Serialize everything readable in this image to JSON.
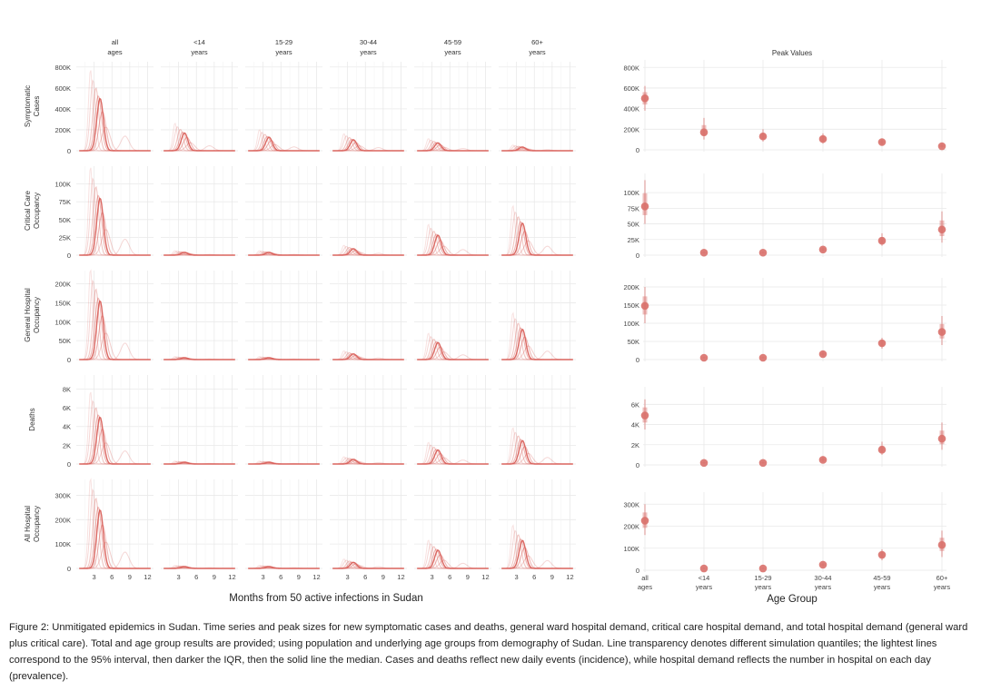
{
  "chart_data": [
    {
      "type": "line",
      "title": "",
      "xlabel": "Months from 50 active infections in Sudan",
      "x_ticks": [
        3,
        6,
        9,
        12
      ],
      "xlim": [
        0,
        13
      ],
      "columns": [
        {
          "key": "all",
          "line1": "all",
          "line2": "ages"
        },
        {
          "key": "u14",
          "line1": "<14",
          "line2": "years"
        },
        {
          "key": "a15",
          "line1": "15-29",
          "line2": "years"
        },
        {
          "key": "a30",
          "line1": "30-44",
          "line2": "years"
        },
        {
          "key": "a45",
          "line1": "45-59",
          "line2": "years"
        },
        {
          "key": "a60",
          "line1": "60+",
          "line2": "years"
        }
      ],
      "rows": [
        {
          "label_lines": [
            "Symptomatic",
            "Cases"
          ],
          "ylim": [
            0,
            850000
          ],
          "y_ticks": [
            0,
            200000,
            400000,
            600000,
            800000
          ],
          "y_tick_labels": [
            "0",
            "200K",
            "400K",
            "600K",
            "800K"
          ],
          "median_peaks": [
            500000,
            170000,
            130000,
            105000,
            75000,
            35000
          ]
        },
        {
          "label_lines": [
            "Critical Care",
            "Occupancy"
          ],
          "ylim": [
            0,
            125000
          ],
          "y_ticks": [
            0,
            25000,
            50000,
            75000,
            100000
          ],
          "y_tick_labels": [
            "0",
            "25K",
            "50K",
            "75K",
            "100K"
          ],
          "median_peaks": [
            80000,
            4000,
            4000,
            9000,
            28000,
            45000
          ]
        },
        {
          "label_lines": [
            "General Hospital",
            "Occupancy"
          ],
          "ylim": [
            0,
            235000
          ],
          "y_ticks": [
            0,
            50000,
            100000,
            150000,
            200000
          ],
          "y_tick_labels": [
            "0",
            "50K",
            "100K",
            "150K",
            "200K"
          ],
          "median_peaks": [
            155000,
            5000,
            5000,
            15000,
            45000,
            80000
          ]
        },
        {
          "label_lines": [
            "Deaths"
          ],
          "ylim": [
            0,
            9500
          ],
          "y_ticks": [
            0,
            2000,
            4000,
            6000,
            8000
          ],
          "y_tick_labels": [
            "0",
            "2K",
            "4K",
            "6K",
            "8K"
          ],
          "median_peaks": [
            5000,
            200,
            200,
            500,
            1500,
            2500
          ]
        },
        {
          "label_lines": [
            "All Hospital",
            "Occupancy"
          ],
          "ylim": [
            0,
            365000
          ],
          "y_ticks": [
            0,
            100000,
            200000,
            300000
          ],
          "y_tick_labels": [
            "0",
            "100K",
            "200K",
            "300K"
          ],
          "median_peaks": [
            240000,
            8000,
            8000,
            25000,
            75000,
            115000
          ]
        }
      ],
      "peak_month": 4,
      "quantiles": [
        "95% interval",
        "IQR",
        "median"
      ]
    },
    {
      "type": "scatter",
      "title": "Peak Values",
      "xlabel": "Age Group",
      "categories": [
        {
          "line1": "all",
          "line2": "ages"
        },
        {
          "line1": "<14",
          "line2": "years"
        },
        {
          "line1": "15-29",
          "line2": "years"
        },
        {
          "line1": "30-44",
          "line2": "years"
        },
        {
          "line1": "45-59",
          "line2": "years"
        },
        {
          "line1": "60+",
          "line2": "years"
        }
      ],
      "rows": [
        {
          "ylim": [
            0,
            820000
          ],
          "y_ticks": [
            0,
            200000,
            400000,
            600000,
            800000
          ],
          "y_tick_labels": [
            "0",
            "200K",
            "400K",
            "600K",
            "800K"
          ],
          "values": [
            500000,
            170000,
            130000,
            105000,
            75000,
            35000
          ],
          "ci95_low": [
            380000,
            100000,
            80000,
            60000,
            40000,
            20000
          ],
          "ci95_high": [
            620000,
            310000,
            200000,
            160000,
            110000,
            60000
          ]
        },
        {
          "ylim": [
            0,
            122000
          ],
          "y_ticks": [
            0,
            25000,
            50000,
            75000,
            100000
          ],
          "y_tick_labels": [
            "0",
            "25K",
            "50K",
            "75K",
            "100K"
          ],
          "values": [
            78000,
            4000,
            4000,
            9000,
            23000,
            41000
          ],
          "ci95_low": [
            50000,
            2500,
            2500,
            6000,
            15000,
            20000
          ],
          "ci95_high": [
            120000,
            6000,
            6000,
            13000,
            35000,
            70000
          ]
        },
        {
          "ylim": [
            0,
            210000
          ],
          "y_ticks": [
            0,
            50000,
            100000,
            150000,
            200000
          ],
          "y_tick_labels": [
            "0",
            "50K",
            "100K",
            "150K",
            "200K"
          ],
          "values": [
            148000,
            5000,
            5000,
            15000,
            45000,
            76000
          ],
          "ci95_low": [
            100000,
            3000,
            3000,
            9000,
            30000,
            40000
          ],
          "ci95_high": [
            200000,
            8000,
            8000,
            22000,
            60000,
            120000
          ]
        },
        {
          "ylim": [
            0,
            7200
          ],
          "y_ticks": [
            0,
            2000,
            4000,
            6000
          ],
          "y_tick_labels": [
            "0",
            "2K",
            "4K",
            "6K"
          ],
          "values": [
            4900,
            200,
            200,
            500,
            1500,
            2600
          ],
          "ci95_low": [
            3500,
            100,
            100,
            300,
            1000,
            1500
          ],
          "ci95_high": [
            6500,
            350,
            350,
            800,
            2300,
            4200
          ]
        },
        {
          "ylim": [
            0,
            330000
          ],
          "y_ticks": [
            0,
            100000,
            200000,
            300000
          ],
          "y_tick_labels": [
            "0",
            "100K",
            "200K",
            "300K"
          ],
          "values": [
            225000,
            8000,
            8000,
            25000,
            70000,
            115000
          ],
          "ci95_low": [
            160000,
            5000,
            5000,
            15000,
            45000,
            60000
          ],
          "ci95_high": [
            300000,
            12000,
            12000,
            35000,
            95000,
            180000
          ]
        }
      ]
    }
  ],
  "caption": "Figure 2: Unmitigated epidemics in Sudan. Time series and peak sizes for new symptomatic cases and deaths, general ward hospital demand, critical care hospital demand, and total hospital demand (general ward plus critical care). Total and age group results are provided; using population and underlying age groups from demography of Sudan. Line transparency denotes different simulation quantiles; the lightest lines correspond to the 95% interval, then darker the IQR, then the solid line the median. Cases and deaths reflect new daily events (incidence), while hospital demand reflects the number in hospital on each day (prevalence).",
  "colors": {
    "line": "#d9605a",
    "point": "#d9716c",
    "grid": "#e9e9e9",
    "panel_bg": "#ffffff"
  }
}
